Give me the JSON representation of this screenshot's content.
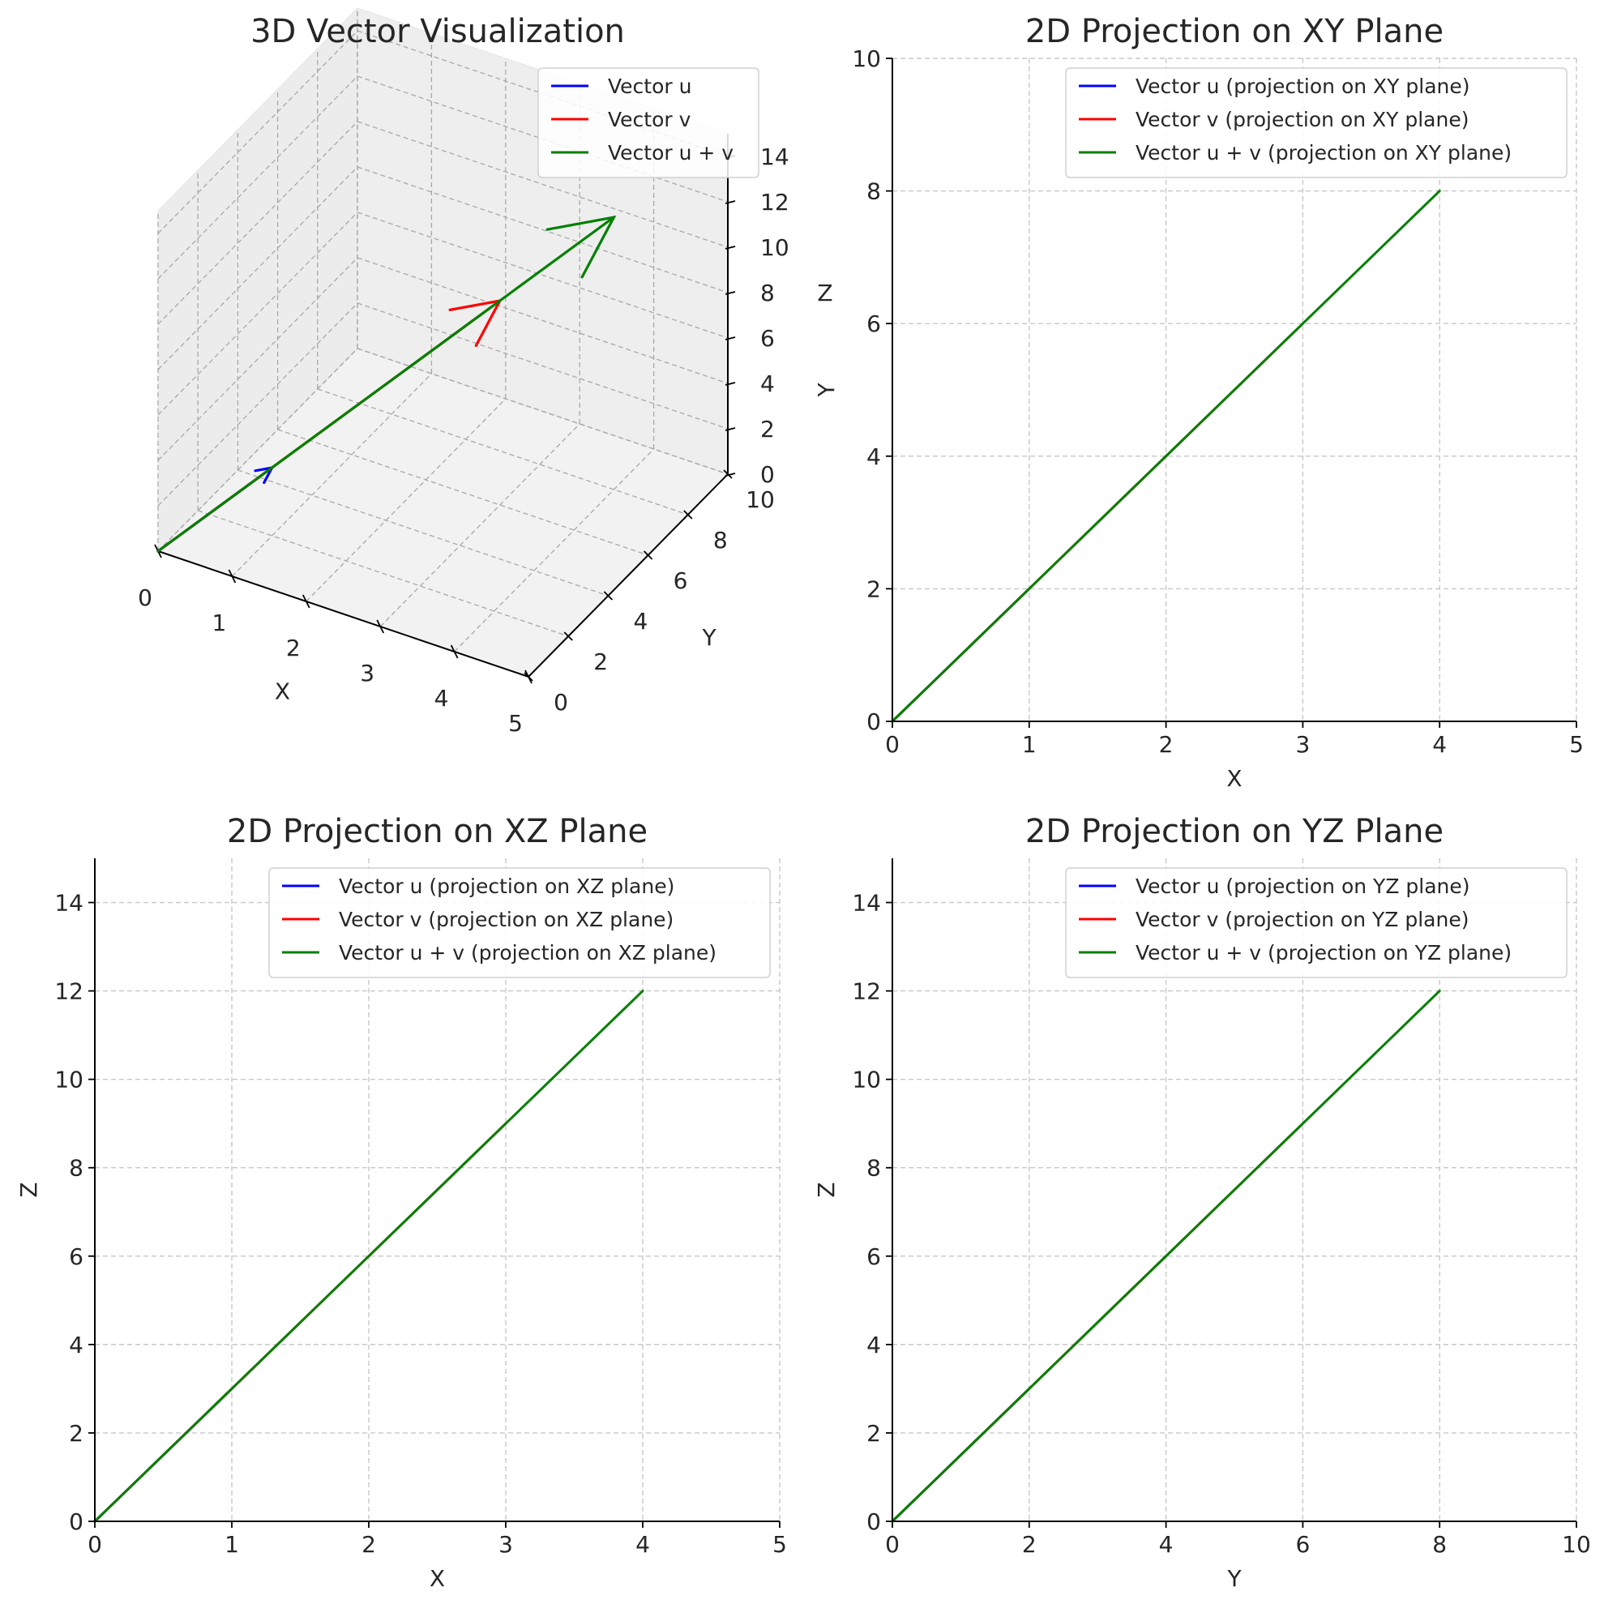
{
  "colors": {
    "u": "#0000ff",
    "v": "#ff0000",
    "sum": "#008000"
  },
  "chart_data": [
    {
      "type": "line",
      "panel": "3d",
      "title": "3D Vector Visualization",
      "xlabel": "X",
      "ylabel": "Y",
      "zlabel": "Z",
      "xlim": [
        0,
        5
      ],
      "ylim": [
        0,
        10
      ],
      "zlim": [
        0,
        15
      ],
      "xticks": [
        "0",
        "1",
        "2",
        "3",
        "4",
        "5"
      ],
      "yticks": [
        "0",
        "2",
        "4",
        "6",
        "8",
        "10"
      ],
      "zticks": [
        "0",
        "2",
        "4",
        "6",
        "8",
        "10",
        "12",
        "14"
      ],
      "grid": true,
      "legend_position": "top-right",
      "series": [
        {
          "name": "Vector u",
          "color": "#0000ff",
          "from": [
            0,
            0,
            0
          ],
          "to": [
            1,
            2,
            3
          ]
        },
        {
          "name": "Vector v",
          "color": "#ff0000",
          "from": [
            0,
            0,
            0
          ],
          "to": [
            3,
            6,
            9
          ]
        },
        {
          "name": "Vector u + v",
          "color": "#008000",
          "from": [
            0,
            0,
            0
          ],
          "to": [
            4,
            8,
            12
          ]
        }
      ]
    },
    {
      "type": "line",
      "panel": "xy",
      "title": "2D Projection on XY Plane",
      "xlabel": "X",
      "ylabel": "Y",
      "xlim": [
        0,
        5
      ],
      "ylim": [
        0,
        10
      ],
      "xticks": [
        "0",
        "1",
        "2",
        "3",
        "4",
        "5"
      ],
      "yticks": [
        "0",
        "2",
        "4",
        "6",
        "8",
        "10"
      ],
      "grid": true,
      "legend_position": "top-right",
      "series": [
        {
          "name": "Vector u (projection on XY plane)",
          "color": "#0000ff",
          "x": [
            0,
            1
          ],
          "y": [
            0,
            2
          ]
        },
        {
          "name": "Vector v (projection on XY plane)",
          "color": "#ff0000",
          "x": [
            0,
            3
          ],
          "y": [
            0,
            6
          ]
        },
        {
          "name": "Vector u + v (projection on XY plane)",
          "color": "#008000",
          "x": [
            0,
            4
          ],
          "y": [
            0,
            8
          ]
        }
      ]
    },
    {
      "type": "line",
      "panel": "xz",
      "title": "2D Projection on XZ Plane",
      "xlabel": "X",
      "ylabel": "Z",
      "xlim": [
        0,
        5
      ],
      "ylim": [
        0,
        15
      ],
      "xticks": [
        "0",
        "1",
        "2",
        "3",
        "4",
        "5"
      ],
      "yticks": [
        "0",
        "2",
        "4",
        "6",
        "8",
        "10",
        "12",
        "14"
      ],
      "grid": true,
      "legend_position": "top-right",
      "series": [
        {
          "name": "Vector u (projection on XZ plane)",
          "color": "#0000ff",
          "x": [
            0,
            1
          ],
          "y": [
            0,
            3
          ]
        },
        {
          "name": "Vector v (projection on XZ plane)",
          "color": "#ff0000",
          "x": [
            0,
            3
          ],
          "y": [
            0,
            9
          ]
        },
        {
          "name": "Vector u + v (projection on XZ plane)",
          "color": "#008000",
          "x": [
            0,
            4
          ],
          "y": [
            0,
            12
          ]
        }
      ]
    },
    {
      "type": "line",
      "panel": "yz",
      "title": "2D Projection on YZ Plane",
      "xlabel": "Y",
      "ylabel": "Z",
      "xlim": [
        0,
        10
      ],
      "ylim": [
        0,
        15
      ],
      "xticks": [
        "0",
        "2",
        "4",
        "6",
        "8",
        "10"
      ],
      "yticks": [
        "0",
        "2",
        "4",
        "6",
        "8",
        "10",
        "12",
        "14"
      ],
      "grid": true,
      "legend_position": "top-right",
      "series": [
        {
          "name": "Vector u (projection on YZ plane)",
          "color": "#0000ff",
          "x": [
            0,
            2
          ],
          "y": [
            0,
            3
          ]
        },
        {
          "name": "Vector v (projection on YZ plane)",
          "color": "#ff0000",
          "x": [
            0,
            6
          ],
          "y": [
            0,
            9
          ]
        },
        {
          "name": "Vector u + v (projection on YZ plane)",
          "color": "#008000",
          "x": [
            0,
            8
          ],
          "y": [
            0,
            12
          ]
        }
      ]
    }
  ]
}
